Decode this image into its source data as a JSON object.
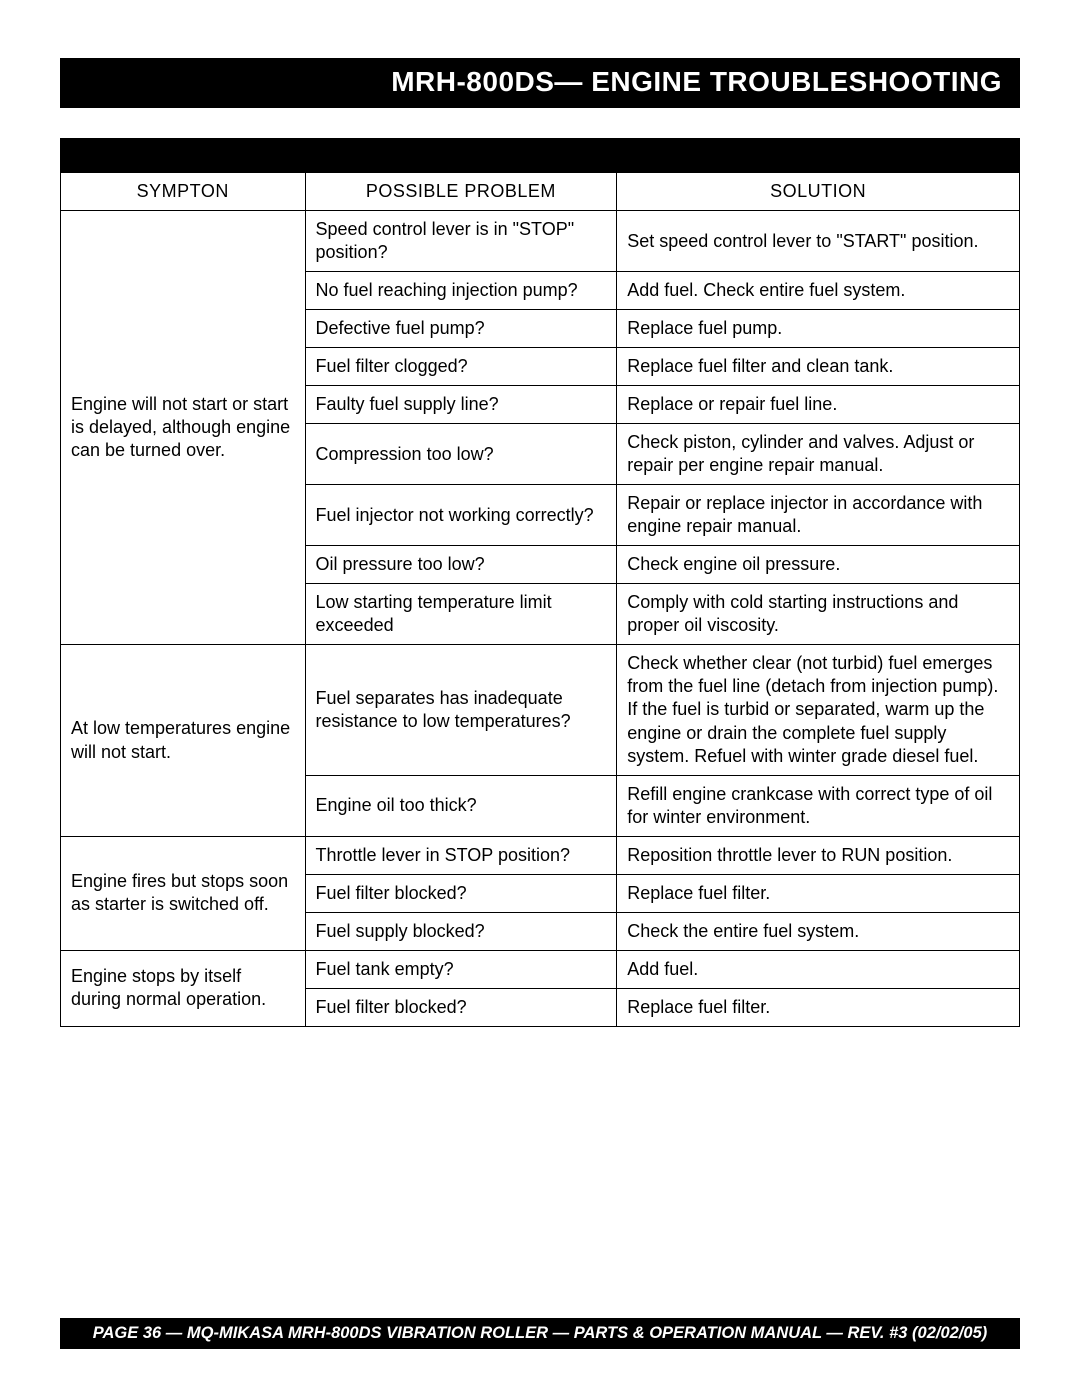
{
  "title": "MRH-800DS— ENGINE TROUBLESHOOTING",
  "table": {
    "caption_blank": "",
    "columns": [
      "SYMPTON",
      "POSSIBLE PROBLEM",
      "SOLUTION"
    ],
    "col_widths_pct": [
      25.5,
      32.5,
      42.0
    ],
    "border_color": "#000000",
    "header_bg": "#000000",
    "header_fg": "#ffffff",
    "body_font_size_pt": 13,
    "groups": [
      {
        "symptom": "Engine will not start or start is delayed, although engine can be turned over.",
        "rows": [
          {
            "problem": "Speed control lever is in \"STOP\" position?",
            "solution": "Set speed control lever to \"START\" position."
          },
          {
            "problem": "No fuel reaching injection pump?",
            "solution": "Add fuel. Check entire fuel system."
          },
          {
            "problem": "Defective fuel pump?",
            "solution": "Replace fuel pump."
          },
          {
            "problem": "Fuel filter clogged?",
            "solution": "Replace fuel filter and clean tank."
          },
          {
            "problem": "Faulty fuel supply line?",
            "solution": "Replace or repair fuel line."
          },
          {
            "problem": "Compression too low?",
            "solution": "Check piston, cylinder and valves. Adjust or repair per engine repair manual."
          },
          {
            "problem": "Fuel injector not working correctly?",
            "solution": "Repair or replace injector in accordance with engine repair manual."
          },
          {
            "problem": "Oil pressure too low?",
            "solution": "Check engine oil pressure."
          },
          {
            "problem": "Low starting temperature limit exceeded",
            "solution": "Comply with cold starting instructions and proper oil viscosity."
          }
        ]
      },
      {
        "symptom": "At low temperatures engine will not start.",
        "rows": [
          {
            "problem": "Fuel separates has inadequate resistance to low temperatures?",
            "solution": "Check whether clear (not turbid) fuel emerges from the fuel line (detach from injection pump). If the fuel is turbid or separated, warm up the engine or drain the complete fuel supply system. Refuel with winter grade diesel fuel."
          },
          {
            "problem": "Engine oil too thick?",
            "solution": "Refill engine crankcase with correct type of oil for winter environment."
          }
        ]
      },
      {
        "symptom": "Engine fires but stops soon as starter is switched off.",
        "rows": [
          {
            "problem": "Throttle lever in STOP position?",
            "solution": "Reposition throttle lever to RUN position."
          },
          {
            "problem": "Fuel filter blocked?",
            "solution": "Replace fuel filter."
          },
          {
            "problem": "Fuel supply blocked?",
            "solution": "Check the entire fuel system."
          }
        ]
      },
      {
        "symptom": "Engine stops by itself during normal operation.",
        "rows": [
          {
            "problem": "Fuel tank empty?",
            "solution": "Add fuel."
          },
          {
            "problem": "Fuel filter blocked?",
            "solution": "Replace fuel filter."
          }
        ]
      }
    ]
  },
  "footer": "PAGE 36 — MQ-MIKASA MRH-800DS VIBRATION ROLLER — PARTS & OPERATION MANUAL — REV. #3 (02/02/05)",
  "colors": {
    "page_bg": "#ffffff",
    "bar_bg": "#000000",
    "bar_fg": "#ffffff",
    "text": "#000000"
  }
}
